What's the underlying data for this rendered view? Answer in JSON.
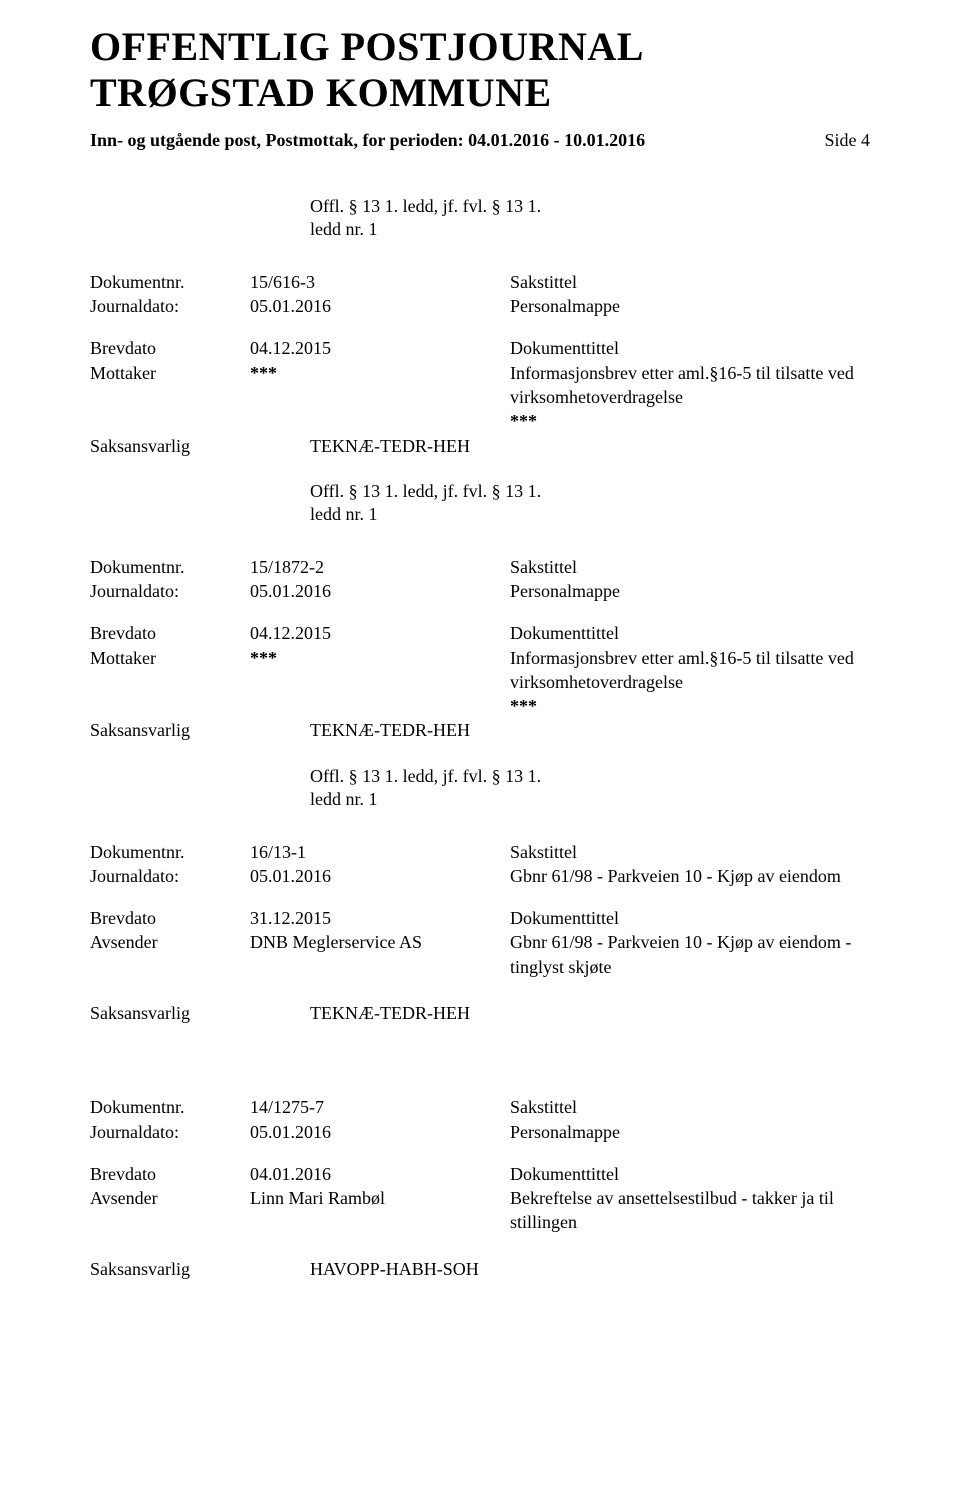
{
  "header": {
    "title_line1": "OFFENTLIG POSTJOURNAL",
    "title_line2": "TRØGSTAD KOMMUNE",
    "subhead": "Inn- og utgående post, Postmottak, for perioden: 04.01.2016 - 10.01.2016",
    "side_label": "Side 4"
  },
  "offl": {
    "line1": "Offl. § 13 1. ledd, jf. fvl. § 13 1.",
    "line2": "ledd nr. 1"
  },
  "labels": {
    "dokumentnr": "Dokumentnr.",
    "journaldato": "Journaldato:",
    "brevdato": "Brevdato",
    "mottaker": "Mottaker",
    "avsender": "Avsender",
    "saksansvarlig": "Saksansvarlig",
    "sakstittel": "Sakstittel",
    "dokumenttittel": "Dokumenttittel"
  },
  "stars": "***",
  "entries": [
    {
      "dokumentnr": "15/616-3",
      "journaldato": "05.01.2016",
      "sakstittel": "Personalmappe",
      "brevdato": "04.12.2015",
      "party_label": "Mottaker",
      "party_value": "***",
      "dokumenttittel_lines": [
        "Informasjonsbrev etter aml.§16-5 til tilsatte ved",
        "virksomhetoverdragelse"
      ],
      "trailing_stars": true,
      "saksansvarlig": "TEKNÆ-TEDR-HEH",
      "show_offl_after": true
    },
    {
      "dokumentnr": "15/1872-2",
      "journaldato": "05.01.2016",
      "sakstittel": "Personalmappe",
      "brevdato": "04.12.2015",
      "party_label": "Mottaker",
      "party_value": "***",
      "dokumenttittel_lines": [
        "Informasjonsbrev etter aml.§16-5 til tilsatte ved",
        "virksomhetoverdragelse"
      ],
      "trailing_stars": true,
      "saksansvarlig": "TEKNÆ-TEDR-HEH",
      "show_offl_after": true
    },
    {
      "dokumentnr": "16/13-1",
      "journaldato": "05.01.2016",
      "sakstittel": "Gbnr 61/98 - Parkveien 10 - Kjøp av eiendom",
      "brevdato": "31.12.2015",
      "party_label": "Avsender",
      "party_value": "DNB Meglerservice AS",
      "dokumenttittel_lines": [
        "Gbnr 61/98 - Parkveien 10 - Kjøp av eiendom -",
        "tinglyst skjøte"
      ],
      "trailing_stars": false,
      "saksansvarlig": "TEKNÆ-TEDR-HEH",
      "show_offl_after": false,
      "saksansvarlig_gap": true
    },
    {
      "dokumentnr": "14/1275-7",
      "journaldato": "05.01.2016",
      "sakstittel": "Personalmappe",
      "brevdato": "04.01.2016",
      "party_label": "Avsender",
      "party_value": "Linn Mari Rambøl",
      "dokumenttittel_lines": [
        "Bekreftelse av ansettelsestilbud - takker ja til",
        "stillingen"
      ],
      "trailing_stars": false,
      "saksansvarlig": "HAVOPP-HABH-SOH",
      "show_offl_after": false,
      "saksansvarlig_gap": true
    }
  ]
}
